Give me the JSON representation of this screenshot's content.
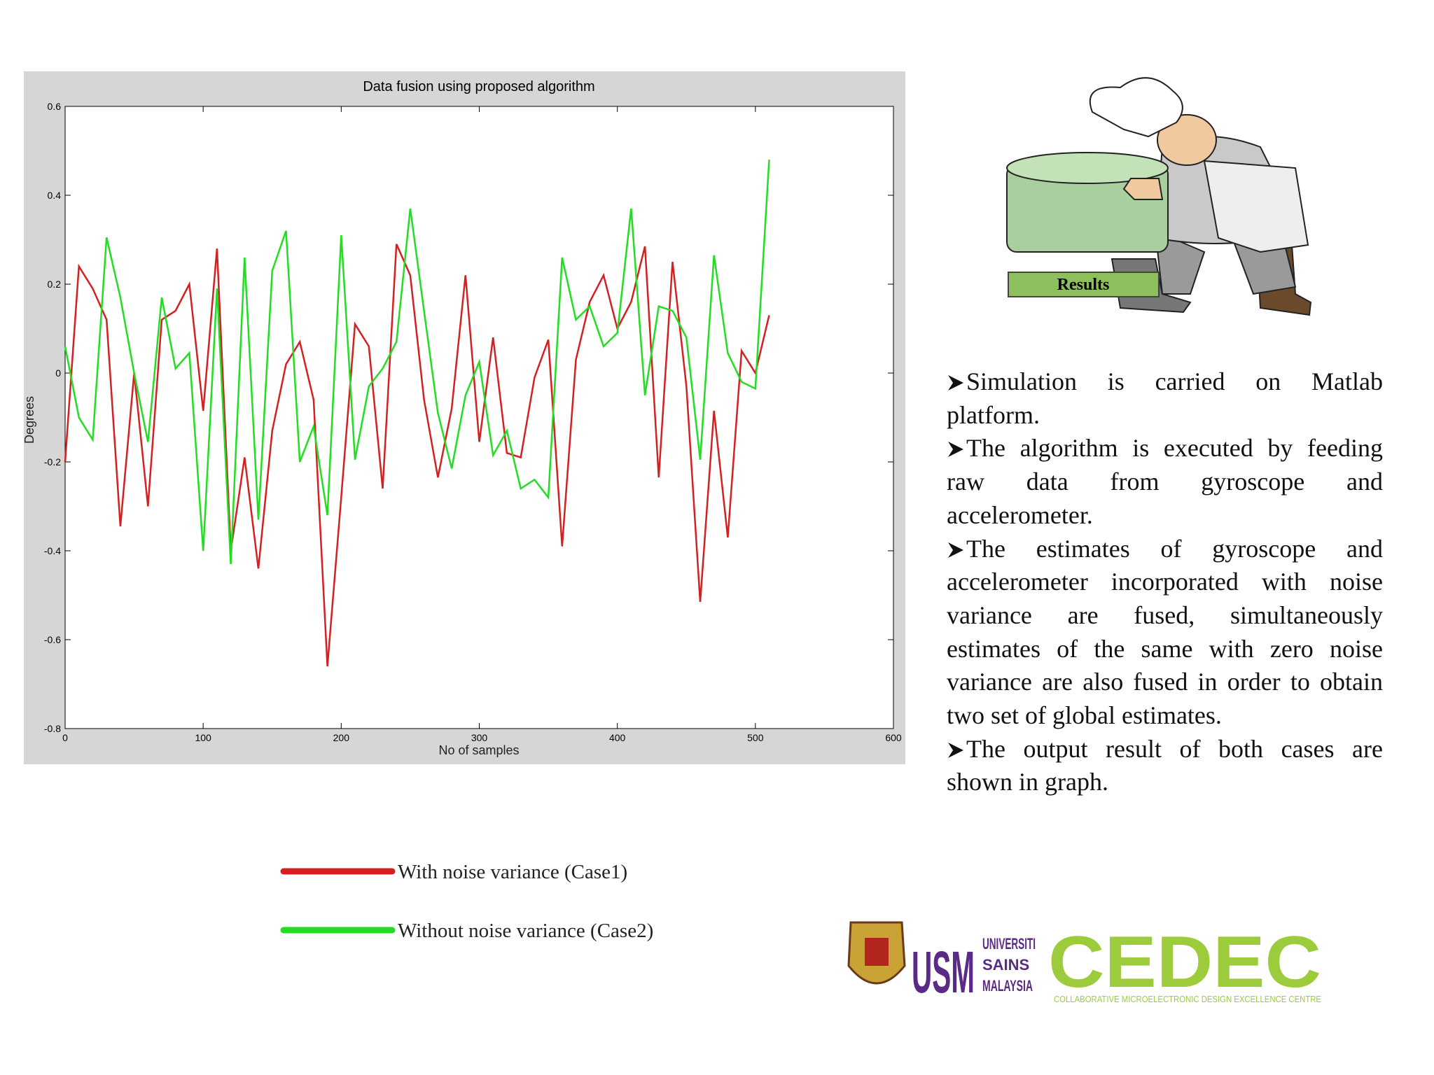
{
  "chart_data": {
    "type": "line",
    "title": "Data fusion using proposed algorithm",
    "x_label": "No of samples",
    "y_label": "Degrees",
    "x": [
      0,
      10,
      20,
      30,
      40,
      50,
      60,
      70,
      80,
      90,
      100,
      110,
      120,
      130,
      140,
      150,
      160,
      170,
      180,
      190,
      200,
      210,
      220,
      230,
      240,
      250,
      260,
      270,
      280,
      290,
      300,
      310,
      320,
      330,
      340,
      350,
      360,
      370,
      380,
      390,
      400,
      410,
      420,
      430,
      440,
      450,
      460,
      470,
      480,
      490,
      500,
      510
    ],
    "series": [
      {
        "name": "With noise variance (Case1)",
        "color": "#d42020",
        "values": [
          -0.2,
          0.24,
          0.19,
          0.12,
          -0.345,
          0.0,
          -0.3,
          0.12,
          0.14,
          0.2,
          -0.085,
          0.28,
          -0.4,
          -0.19,
          -0.44,
          -0.13,
          0.02,
          0.07,
          -0.06,
          -0.66,
          -0.28,
          0.11,
          0.06,
          -0.26,
          0.29,
          0.22,
          -0.06,
          -0.235,
          -0.08,
          0.22,
          -0.155,
          0.08,
          -0.18,
          -0.19,
          -0.01,
          0.075,
          -0.39,
          0.03,
          0.16,
          0.22,
          0.1,
          0.16,
          0.285,
          -0.235,
          0.25,
          -0.03,
          -0.515,
          -0.085,
          -0.37,
          0.05,
          0.0,
          0.13
        ]
      },
      {
        "name": "Without noise variance (Case2)",
        "color": "#22dd22",
        "values": [
          0.06,
          -0.1,
          -0.15,
          0.305,
          0.17,
          0.0,
          -0.155,
          0.17,
          0.01,
          0.045,
          -0.4,
          0.19,
          -0.43,
          0.26,
          -0.33,
          0.23,
          0.32,
          -0.2,
          -0.12,
          -0.32,
          0.31,
          -0.195,
          -0.03,
          0.01,
          0.07,
          0.37,
          0.14,
          -0.09,
          -0.215,
          -0.05,
          0.025,
          -0.185,
          -0.13,
          -0.26,
          -0.24,
          -0.28,
          0.26,
          0.12,
          0.15,
          0.06,
          0.09,
          0.37,
          -0.05,
          0.15,
          0.14,
          0.08,
          -0.195,
          0.265,
          0.045,
          -0.02,
          -0.035,
          0.48
        ]
      }
    ],
    "xlim": [
      0,
      600
    ],
    "xticks": [
      0,
      100,
      200,
      300,
      400,
      500,
      600
    ],
    "ylim": [
      -0.8,
      0.6
    ],
    "yticks": [
      -0.8,
      -0.6,
      -0.4,
      -0.2,
      0,
      0.2,
      0.4,
      0.6
    ],
    "grid": false,
    "legend": "bottom"
  },
  "illustration": {
    "label": "Results"
  },
  "bullets": [
    "Simulation is carried on Matlab platform.",
    "The algorithm is executed by feeding raw data from gyroscope and accelerometer.",
    "The estimates of gyroscope and accelerometer incorporated with noise variance are fused, simultaneously estimates of the same with zero noise variance are also fused in order to obtain two set of global estimates.",
    "The output result of both cases are shown in graph."
  ],
  "logos": {
    "usm": "USM",
    "usm_name": [
      "UNIVERSITI",
      "SAINS",
      "MALAYSIA"
    ],
    "cedec": "CEDEC",
    "cedec_name": "COLLABORATIVE MICROELECTRONIC DESIGN EXCELLENCE CENTRE"
  }
}
